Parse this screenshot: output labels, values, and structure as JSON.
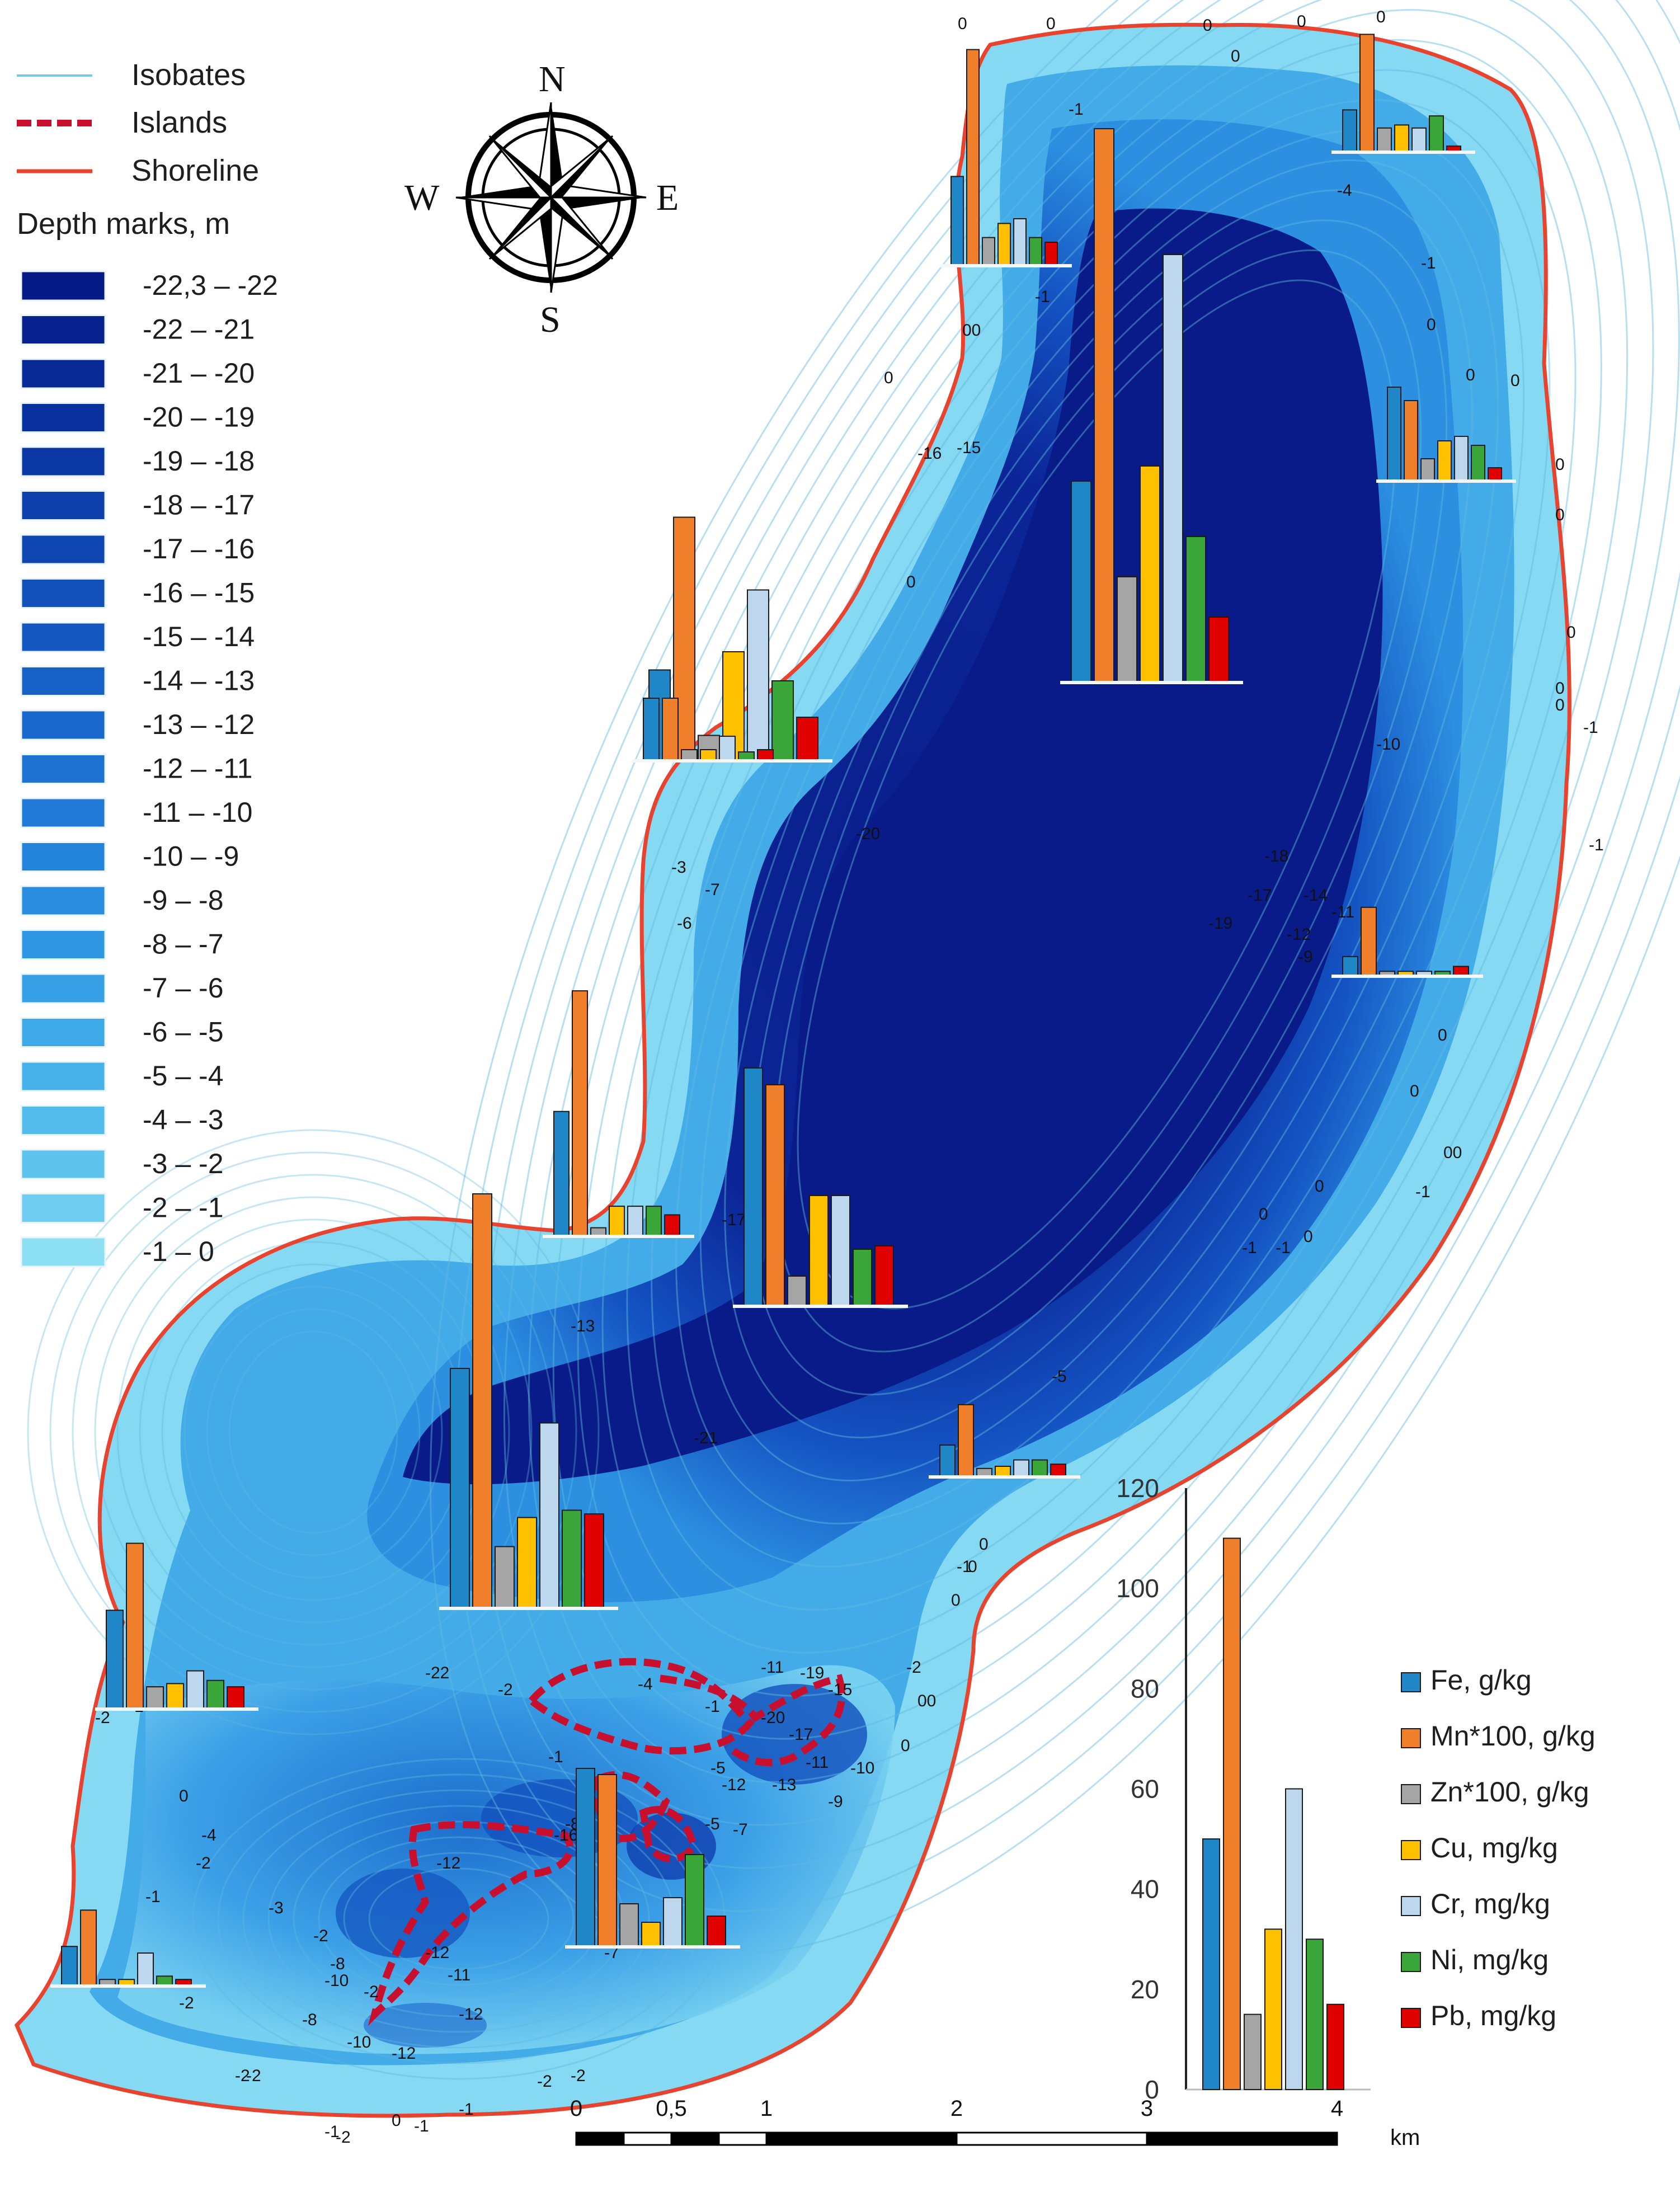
{
  "legend": {
    "isobates_label": "Isobates",
    "islands_label": "Islands",
    "shoreline_label": "Shoreline",
    "depth_title": "Depth marks, m",
    "depth_classes": [
      "-22,3 – -22",
      "-22 – -21",
      "-21 – -20",
      "-20 – -19",
      "-19 – -18",
      "-18 – -17",
      "-17 – -16",
      "-16 – -15",
      "-15 – -14",
      "-14 – -13",
      "-13 – -12",
      "-12 – -11",
      "-11 – -10",
      "-10 – -9",
      "-9 – -8",
      "-8 – -7",
      "-7 – -6",
      "-6 – -5",
      "-5 – -4",
      "-4 – -3",
      "-3 – -2",
      "-2 – -1",
      "-1 – 0"
    ],
    "depth_colors": [
      "#061a86",
      "#07218f",
      "#082896",
      "#0a309d",
      "#0b37a4",
      "#0d3fab",
      "#0f47b2",
      "#114fb9",
      "#1457c0",
      "#1660c6",
      "#1968cc",
      "#1c71d1",
      "#207ad6",
      "#2483db",
      "#298cdf",
      "#2f96e3",
      "#369fe6",
      "#3ea9e8",
      "#47b2ea",
      "#52bbec",
      "#5ec4ee",
      "#6ccdf0",
      "#8de0f3"
    ]
  },
  "compass": {
    "n": "N",
    "s": "S",
    "w": "W",
    "e": "E"
  },
  "scale_bar": {
    "ticks": [
      "0",
      "0,5",
      "1",
      "2",
      "3",
      "4"
    ],
    "unit": "km"
  },
  "colors": {
    "shoreline": "#e8432e",
    "islands": "#c8102e",
    "isobate": "#5fb7e0",
    "fe": "#1f86c7",
    "mn": "#f07f2c",
    "zn": "#a5a5a5",
    "cu": "#ffc000",
    "cr": "#bdd7ee",
    "ni": "#3aa63a",
    "pb": "#e00000"
  },
  "depth_labels": [
    "0",
    "0",
    "0",
    "0",
    "0",
    "0",
    "-1",
    "-4",
    "-1",
    "0",
    "-1",
    "00",
    "0",
    "0",
    "0",
    "0",
    "0",
    "0",
    "0",
    "0",
    "-10",
    "-1",
    "-1",
    "0",
    "-16",
    "-15",
    "0",
    "0",
    "-20",
    "-3",
    "-7",
    "-6",
    "-19",
    "-17",
    "-18",
    "-14",
    "-12",
    "-11",
    "-9",
    "0",
    "0",
    "0",
    "0",
    "-1",
    "-1",
    "00",
    "-1",
    "0",
    "-17",
    "-13",
    "-5",
    "-21",
    "0",
    "0",
    "-1",
    "0",
    "-2",
    "00",
    "0",
    "-11",
    "-19",
    "-20",
    "-17",
    "-15",
    "-13",
    "-11",
    "-10",
    "-9",
    "-12",
    "-7",
    "-5",
    "-22",
    "-1",
    "-4",
    "-5",
    "-2",
    "-1",
    "-8",
    "-16",
    "-12",
    "-11",
    "-10",
    "-8",
    "-10",
    "-12",
    "-12",
    "-12",
    "-7",
    "-1",
    "0",
    "-2",
    "-1",
    "-2",
    "-4",
    "-3",
    "-2",
    "-8",
    "-2",
    "-2",
    "-2",
    "-2",
    "-1",
    "-2",
    "0",
    "-1",
    "-1",
    "-2",
    "-2"
  ],
  "chart_data": {
    "type": "bar",
    "series": [
      {
        "name": "Fe, g/kg",
        "values": [
          50
        ]
      },
      {
        "name": "Mn*100, g/kg",
        "values": [
          110
        ]
      },
      {
        "name": "Zn*100, g/kg",
        "values": [
          15
        ]
      },
      {
        "name": "Cu, mg/kg",
        "values": [
          32
        ]
      },
      {
        "name": "Cr, mg/kg",
        "values": [
          60
        ]
      },
      {
        "name": "Ni, mg/kg",
        "values": [
          30
        ]
      },
      {
        "name": "Pb, mg/kg",
        "values": [
          17
        ]
      }
    ],
    "ylim": [
      0,
      120
    ],
    "yticks": [
      "0",
      "20",
      "40",
      "60",
      "80",
      "100",
      "120"
    ],
    "legend_placement": "right",
    "grid": false,
    "site_bars": [
      [
        14,
        39,
        8,
        9,
        8,
        12,
        2
      ],
      [
        21,
        18,
        5,
        9,
        10,
        8,
        3
      ],
      [
        19,
        46,
        6,
        9,
        10,
        6,
        5
      ],
      [
        40,
        110,
        21,
        43,
        85,
        29,
        13
      ],
      [
        25,
        67,
        7,
        30,
        47,
        22,
        12
      ],
      [
        18,
        31,
        2,
        0,
        0,
        0,
        0
      ],
      [
        4,
        14,
        1,
        1,
        1,
        1,
        2
      ],
      [
        28,
        28,
        5,
        5,
        11,
        4,
        5
      ],
      [
        29,
        57,
        2,
        7,
        7,
        7,
        5
      ],
      [
        34,
        38,
        2,
        0,
        8,
        3,
        3
      ],
      [
        71,
        66,
        9,
        33,
        33,
        17,
        18
      ],
      [
        66,
        114,
        17,
        25,
        51,
        27,
        26
      ],
      [
        15,
        34,
        4,
        5,
        8,
        8,
        6
      ],
      [
        31,
        52,
        7,
        8,
        12,
        9,
        7
      ],
      [
        29,
        28,
        7,
        4,
        8,
        15,
        5
      ],
      [
        12,
        23,
        2,
        2,
        10,
        3,
        2
      ]
    ]
  }
}
